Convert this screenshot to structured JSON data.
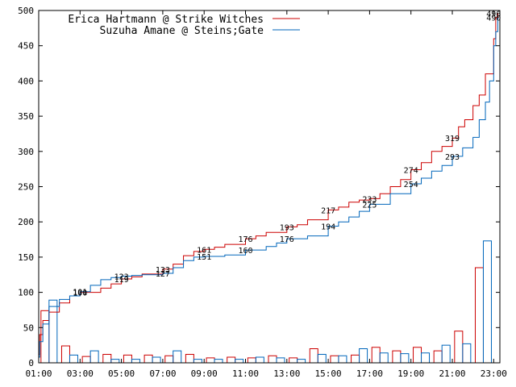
{
  "chart_data": {
    "type": "line",
    "title": "",
    "xlabel": "",
    "ylabel": "",
    "xlim": [
      1,
      23.3
    ],
    "ylim": [
      0,
      500
    ],
    "grid": false,
    "legend_position": "top-left",
    "x_ticks": [
      {
        "value": 1,
        "label": "01:00"
      },
      {
        "value": 3,
        "label": "03:00"
      },
      {
        "value": 5,
        "label": "05:00"
      },
      {
        "value": 7,
        "label": "07:00"
      },
      {
        "value": 9,
        "label": "09:00"
      },
      {
        "value": 11,
        "label": "11:00"
      },
      {
        "value": 13,
        "label": "13:00"
      },
      {
        "value": 15,
        "label": "15:00"
      },
      {
        "value": 17,
        "label": "17:00"
      },
      {
        "value": 19,
        "label": "19:00"
      },
      {
        "value": 21,
        "label": "21:00"
      },
      {
        "value": 23,
        "label": "23:00"
      }
    ],
    "y_ticks": [
      0,
      50,
      100,
      150,
      200,
      250,
      300,
      350,
      400,
      450,
      500
    ],
    "series": [
      {
        "name": "Erica Hartmann @ Strike Witches",
        "color": "#cc0000",
        "cumulative": [
          [
            1.0,
            12
          ],
          [
            1.05,
            40
          ],
          [
            1.2,
            60
          ],
          [
            1.5,
            72
          ],
          [
            2.0,
            85
          ],
          [
            2.5,
            95
          ],
          [
            3.0,
            100
          ],
          [
            4.0,
            106
          ],
          [
            4.5,
            112
          ],
          [
            5.0,
            119
          ],
          [
            5.5,
            122
          ],
          [
            6.0,
            126
          ],
          [
            7.0,
            133
          ],
          [
            7.5,
            140
          ],
          [
            8.0,
            152
          ],
          [
            8.5,
            158
          ],
          [
            9.0,
            161
          ],
          [
            9.5,
            164
          ],
          [
            10.0,
            168
          ],
          [
            11.0,
            176
          ],
          [
            11.5,
            180
          ],
          [
            12.0,
            185
          ],
          [
            13.0,
            193
          ],
          [
            13.5,
            196
          ],
          [
            14.0,
            203
          ],
          [
            15.0,
            217
          ],
          [
            15.5,
            221
          ],
          [
            16.0,
            228
          ],
          [
            16.5,
            231
          ],
          [
            17.0,
            233
          ],
          [
            17.5,
            240
          ],
          [
            18.0,
            250
          ],
          [
            18.5,
            260
          ],
          [
            19.0,
            274
          ],
          [
            19.5,
            284
          ],
          [
            20.0,
            300
          ],
          [
            20.5,
            307
          ],
          [
            21.0,
            319
          ],
          [
            21.3,
            335
          ],
          [
            21.6,
            345
          ],
          [
            22.0,
            365
          ],
          [
            22.3,
            380
          ],
          [
            22.6,
            410
          ],
          [
            23.0,
            460
          ],
          [
            23.1,
            490
          ],
          [
            23.2,
            496
          ]
        ],
        "hourly": [
          74,
          24,
          9,
          12,
          11,
          11,
          10,
          12,
          7,
          8,
          7,
          10,
          7,
          20,
          10,
          11,
          22,
          17,
          22,
          17,
          45,
          135
        ],
        "labels": [
          {
            "x": 3.0,
            "y": 100,
            "text": "100"
          },
          {
            "x": 5.0,
            "y": 119,
            "text": "119"
          },
          {
            "x": 7.0,
            "y": 133,
            "text": "133"
          },
          {
            "x": 9.0,
            "y": 161,
            "text": "161"
          },
          {
            "x": 11.0,
            "y": 176,
            "text": "176"
          },
          {
            "x": 13.0,
            "y": 193,
            "text": "193"
          },
          {
            "x": 15.0,
            "y": 217,
            "text": "217"
          },
          {
            "x": 17.0,
            "y": 233,
            "text": "233"
          },
          {
            "x": 19.0,
            "y": 274,
            "text": "274"
          },
          {
            "x": 21.0,
            "y": 319,
            "text": "319"
          },
          {
            "x": 23.0,
            "y": 496,
            "text": "496"
          }
        ]
      },
      {
        "name": "Suzuha Amane @ Steins;Gate",
        "color": "#0066bb",
        "cumulative": [
          [
            1.0,
            8
          ],
          [
            1.05,
            30
          ],
          [
            1.2,
            55
          ],
          [
            1.5,
            80
          ],
          [
            2.0,
            90
          ],
          [
            2.5,
            95
          ],
          [
            3.0,
            101
          ],
          [
            3.5,
            110
          ],
          [
            4.0,
            118
          ],
          [
            4.5,
            121
          ],
          [
            5.0,
            123
          ],
          [
            5.5,
            124
          ],
          [
            6.0,
            125
          ],
          [
            7.0,
            127
          ],
          [
            7.5,
            135
          ],
          [
            8.0,
            145
          ],
          [
            8.5,
            150
          ],
          [
            9.0,
            151
          ],
          [
            10.0,
            153
          ],
          [
            11.0,
            160
          ],
          [
            12.0,
            165
          ],
          [
            12.5,
            170
          ],
          [
            13.0,
            176
          ],
          [
            14.0,
            180
          ],
          [
            15.0,
            194
          ],
          [
            15.5,
            200
          ],
          [
            16.0,
            207
          ],
          [
            16.5,
            215
          ],
          [
            17.0,
            225
          ],
          [
            18.0,
            240
          ],
          [
            19.0,
            254
          ],
          [
            19.5,
            262
          ],
          [
            20.0,
            272
          ],
          [
            20.5,
            280
          ],
          [
            21.0,
            293
          ],
          [
            21.5,
            305
          ],
          [
            22.0,
            320
          ],
          [
            22.3,
            345
          ],
          [
            22.6,
            370
          ],
          [
            22.8,
            400
          ],
          [
            23.0,
            450
          ],
          [
            23.1,
            470
          ],
          [
            23.2,
            490
          ]
        ],
        "hourly": [
          89,
          11,
          17,
          5,
          5,
          8,
          17,
          5,
          5,
          5,
          8,
          7,
          5,
          12,
          10,
          20,
          14,
          13,
          14,
          25,
          27,
          173
        ],
        "labels": [
          {
            "x": 3.0,
            "y": 101,
            "text": "101"
          },
          {
            "x": 5.0,
            "y": 123,
            "text": "123"
          },
          {
            "x": 7.0,
            "y": 127,
            "text": "127"
          },
          {
            "x": 9.0,
            "y": 151,
            "text": "151"
          },
          {
            "x": 11.0,
            "y": 160,
            "text": "160"
          },
          {
            "x": 13.0,
            "y": 176,
            "text": "176"
          },
          {
            "x": 15.0,
            "y": 194,
            "text": "194"
          },
          {
            "x": 17.0,
            "y": 225,
            "text": "225"
          },
          {
            "x": 19.0,
            "y": 254,
            "text": "254"
          },
          {
            "x": 21.0,
            "y": 293,
            "text": "293"
          },
          {
            "x": 23.0,
            "y": 490,
            "text": "490"
          }
        ]
      }
    ]
  }
}
